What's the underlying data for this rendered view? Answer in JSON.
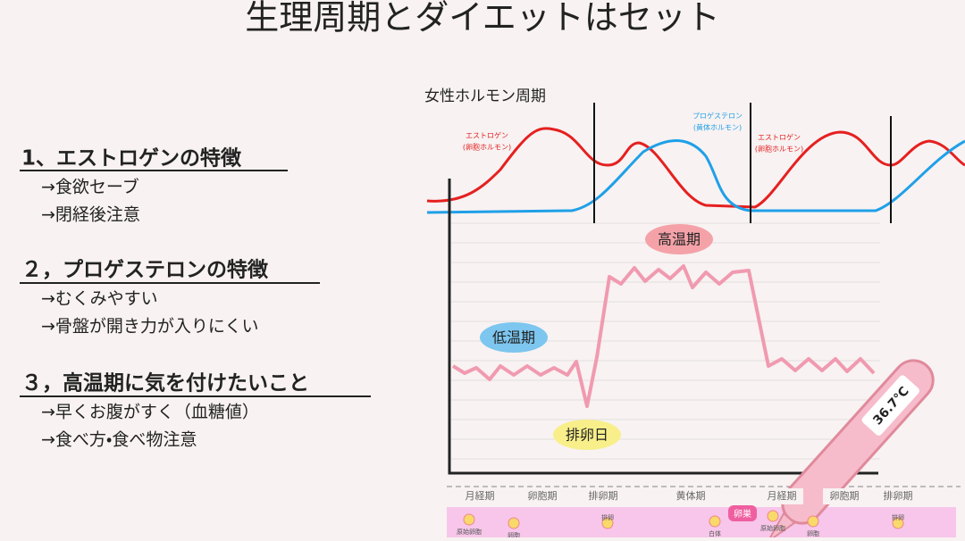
{
  "title": "生理周期とダイエットはセット",
  "sections": [
    {
      "heading": "1、エストロゲンの特徴",
      "items": [
        "→食欲セーブ",
        "→閉経後注意"
      ]
    },
    {
      "heading": "２，プロゲステロンの特徴",
      "items": [
        "→むくみやすい",
        "→骨盤が開き力が入りにくい"
      ]
    },
    {
      "heading": "３，高温期に気を付けたいこと",
      "items": [
        "→早くお腹がすく（血糖値）",
        "→食べ方・食べ物注意"
      ]
    }
  ],
  "diagram": {
    "title": "女性ホルモン周期",
    "estrogen": [
      "エストロゲン",
      "(卵胞ホルモン)"
    ],
    "progesterone": [
      "プロゲステロン",
      "(黄体ホルモン)"
    ],
    "high_temp": "高温期",
    "low_temp": "低温期",
    "ovulation_day": "排卵日",
    "thermometer": "36.7℃",
    "phases": [
      "月経期",
      "卵胞期",
      "排卵期",
      "黄体期",
      "月経期",
      "卵胞期",
      "排卵期"
    ],
    "ovary": "卵巣",
    "strip_labels": [
      "原始卵胞",
      "卵胞",
      "排卵",
      "白体",
      "原始卵胞",
      "卵胞",
      "排卵"
    ]
  }
}
